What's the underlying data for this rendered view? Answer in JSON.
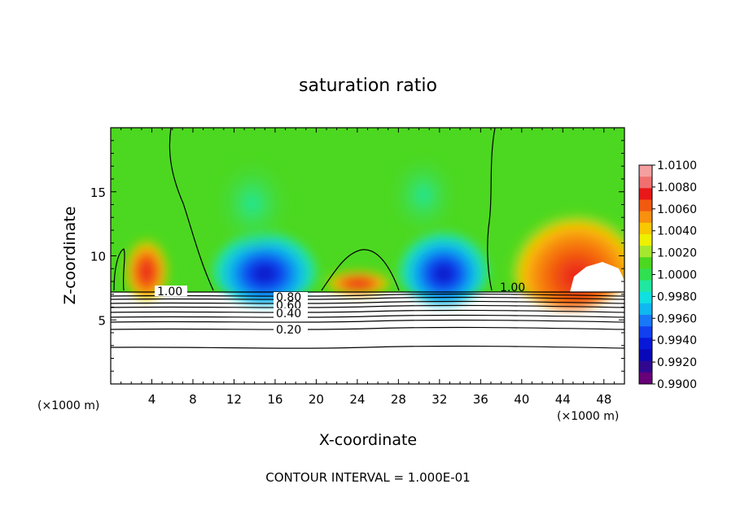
{
  "chart_data": {
    "type": "heatmap",
    "title": "saturation ratio",
    "xlabel": "X-coordinate",
    "ylabel": "Z-coordinate",
    "x_unit_left": "(×1000 m)",
    "x_unit_right": "(×1000 m)",
    "footer": "CONTOUR INTERVAL = 1.000E-01",
    "xlim": [
      0,
      50
    ],
    "ylim": [
      0,
      20
    ],
    "x_ticks": [
      4,
      8,
      12,
      16,
      20,
      24,
      28,
      32,
      36,
      40,
      44,
      48
    ],
    "y_ticks": [
      5,
      10,
      15
    ],
    "colorbar": {
      "min": 0.99,
      "max": 1.01,
      "labels": [
        "1.0100",
        "1.0080",
        "1.0060",
        "1.0040",
        "1.0020",
        "1.0000",
        "0.9980",
        "0.9960",
        "0.9940",
        "0.9920",
        "0.9900"
      ],
      "colors": [
        "#f4a0a0",
        "#f07070",
        "#e81818",
        "#f25a10",
        "#f89010",
        "#f8c800",
        "#eef000",
        "#a6e830",
        "#4cd820",
        "#30e050",
        "#20e8a0",
        "#10e0e0",
        "#10b8f0",
        "#1878f8",
        "#1040f0",
        "#0818d8",
        "#0808b8",
        "#300890",
        "#680078"
      ]
    },
    "contour_labels": [
      "1.00",
      "0.80",
      "0.60",
      "0.40",
      "0.20",
      "1.00"
    ],
    "contour_levels": [
      0.2,
      0.4,
      0.6,
      0.8,
      1.0
    ]
  }
}
